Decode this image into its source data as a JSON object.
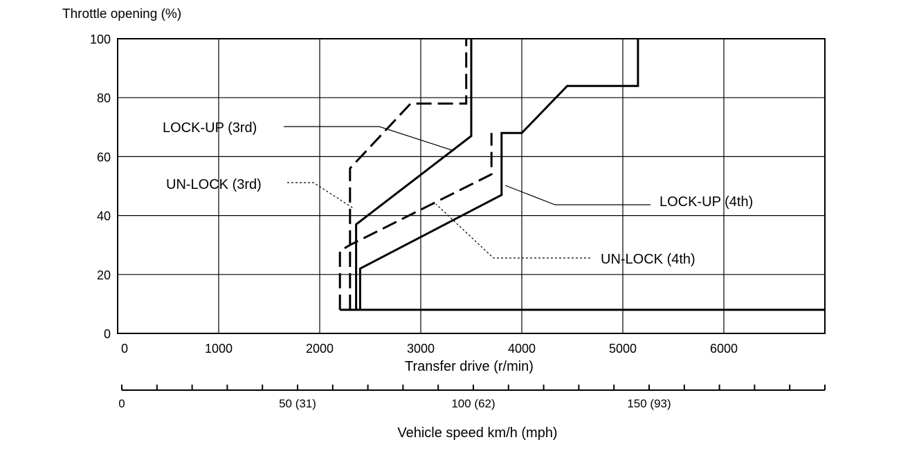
{
  "chart_data": {
    "type": "line",
    "title": "",
    "ylabel": "Throttle opening (%)",
    "xlabel": "Transfer drive (r/min)",
    "xlabel2": "Vehicle speed km/h (mph)",
    "xlim": [
      0,
      7000
    ],
    "ylim": [
      0,
      100
    ],
    "grid": true,
    "y_ticks": [
      0,
      20,
      40,
      60,
      80,
      100
    ],
    "y_tick_labels": [
      "0",
      "20",
      "40",
      "60",
      "80",
      "100"
    ],
    "x_ticks": [
      0,
      1000,
      2000,
      3000,
      4000,
      5000,
      6000
    ],
    "x_tick_labels": [
      "0",
      "1000",
      "2000",
      "3000",
      "4000",
      "5000",
      "6000"
    ],
    "speed_axis": {
      "tick_labels": [
        {
          "value": 0,
          "label": "0"
        },
        {
          "value": 50,
          "label": "50 (31)"
        },
        {
          "value": 100,
          "label": "100 (62)"
        },
        {
          "value": 150,
          "label": "150 (93)"
        }
      ],
      "minor_step": 10,
      "max": 200
    },
    "series": [
      {
        "name": "LOCK-UP (3rd)",
        "style": "solid",
        "points": [
          [
            2360,
            8
          ],
          [
            2360,
            37
          ],
          [
            3500,
            67
          ],
          [
            3500,
            100
          ]
        ]
      },
      {
        "name": "UN-LOCK (3rd)",
        "style": "dashed",
        "points": [
          [
            2300,
            8
          ],
          [
            2300,
            56
          ],
          [
            2900,
            78
          ],
          [
            3450,
            78
          ],
          [
            3450,
            100
          ]
        ]
      },
      {
        "name": "LOCK-UP (4th)",
        "style": "solid",
        "points": [
          [
            2200,
            8
          ],
          [
            7000,
            8
          ],
          [
            7000,
            8
          ],
          [
            2400,
            8
          ],
          [
            2400,
            22
          ],
          [
            3800,
            47
          ],
          [
            3800,
            68
          ],
          [
            4000,
            68
          ],
          [
            4450,
            84
          ],
          [
            5150,
            84
          ],
          [
            5150,
            100
          ]
        ]
      },
      {
        "name": "UN-LOCK (4th)",
        "style": "dashed",
        "points": [
          [
            2200,
            8
          ],
          [
            2200,
            28
          ],
          [
            2300,
            30
          ],
          [
            3700,
            54
          ],
          [
            3700,
            68
          ]
        ]
      }
    ],
    "annotations": [
      {
        "text": "LOCK-UP (3rd)",
        "points_to": "LOCK-UP (3rd)"
      },
      {
        "text": "UN-LOCK (3rd)",
        "points_to": "UN-LOCK (3rd)"
      },
      {
        "text": "LOCK-UP (4th)",
        "points_to": "LOCK-UP (4th)"
      },
      {
        "text": "UN-LOCK (4th)",
        "points_to": "UN-LOCK (4th)"
      }
    ]
  }
}
